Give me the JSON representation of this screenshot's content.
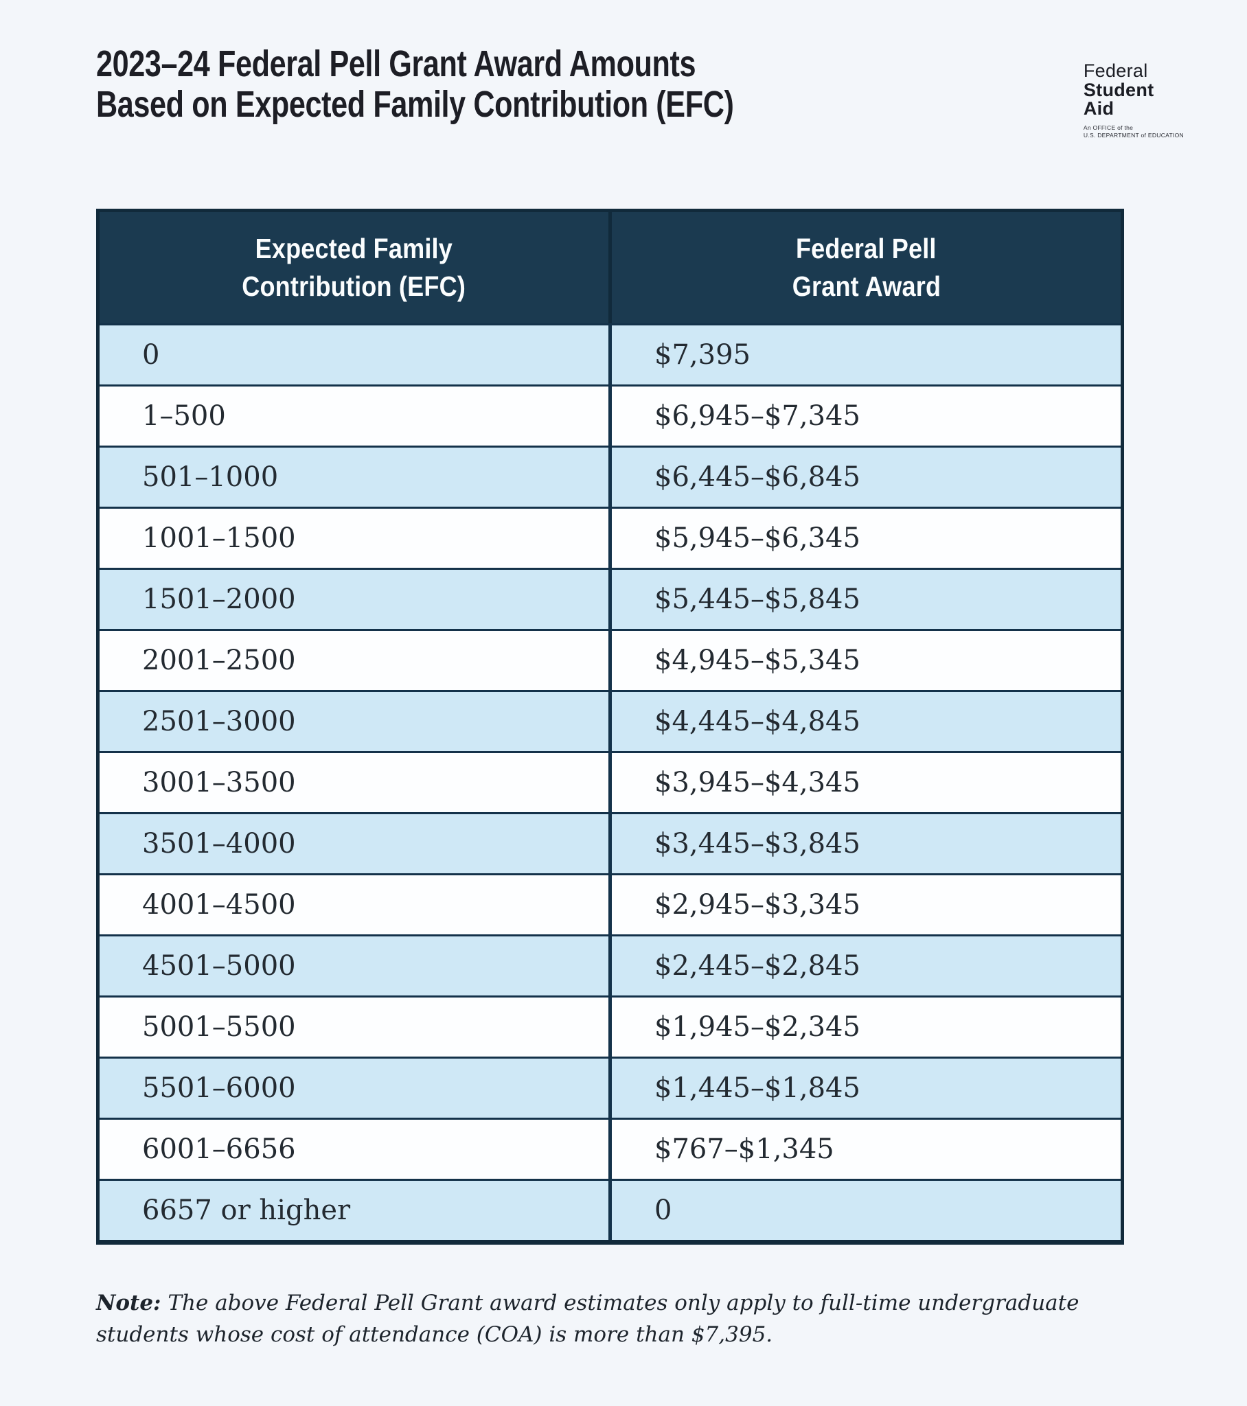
{
  "header": {
    "title_line1": "2023–24 Federal Pell Grant Award Amounts",
    "title_line2": "Based on Expected Family Contribution (EFC)"
  },
  "logo": {
    "word1": "Federal",
    "word2": "Student",
    "word3": "Aid",
    "tagline_line1": "An OFFICE of the",
    "tagline_line2": "U.S. DEPARTMENT of EDUCATION"
  },
  "table": {
    "columns": [
      {
        "line1": "Expected Family",
        "line2": "Contribution (EFC)"
      },
      {
        "line1": "Federal Pell",
        "line2": "Grant Award"
      }
    ],
    "rows": [
      {
        "efc": "0",
        "award": "$7,395"
      },
      {
        "efc": "1–500",
        "award": "$6,945–$7,345"
      },
      {
        "efc": "501–1000",
        "award": "$6,445–$6,845"
      },
      {
        "efc": "1001–1500",
        "award": "$5,945–$6,345"
      },
      {
        "efc": "1501–2000",
        "award": "$5,445–$5,845"
      },
      {
        "efc": "2001–2500",
        "award": "$4,945–$5,345"
      },
      {
        "efc": "2501–3000",
        "award": "$4,445–$4,845"
      },
      {
        "efc": "3001–3500",
        "award": "$3,945–$4,345"
      },
      {
        "efc": "3501–4000",
        "award": "$3,445–$3,845"
      },
      {
        "efc": "4001–4500",
        "award": "$2,945–$3,345"
      },
      {
        "efc": "4501–5000",
        "award": "$2,445–$2,845"
      },
      {
        "efc": "5001–5500",
        "award": "$1,945–$2,345"
      },
      {
        "efc": "5501–6000",
        "award": "$1,445–$1,845"
      },
      {
        "efc": "6001–6656",
        "award": "$767–$1,345"
      },
      {
        "efc": "6657 or higher",
        "award": "0"
      }
    ]
  },
  "note": {
    "label": "Note:",
    "text": " The above Federal Pell Grant award estimates only apply to full-time undergraduate students whose cost of attendance (COA) is more than $7,395."
  },
  "colors": {
    "page_background": "#f3f6fa",
    "table_header_navy": "#1b3a50",
    "table_border_navy": "#112a3b",
    "row_stripe_blue": "#cfe8f6",
    "row_stripe_white": "#fdfeff",
    "title_text": "#1d1e25",
    "cell_text": "#232a31"
  }
}
